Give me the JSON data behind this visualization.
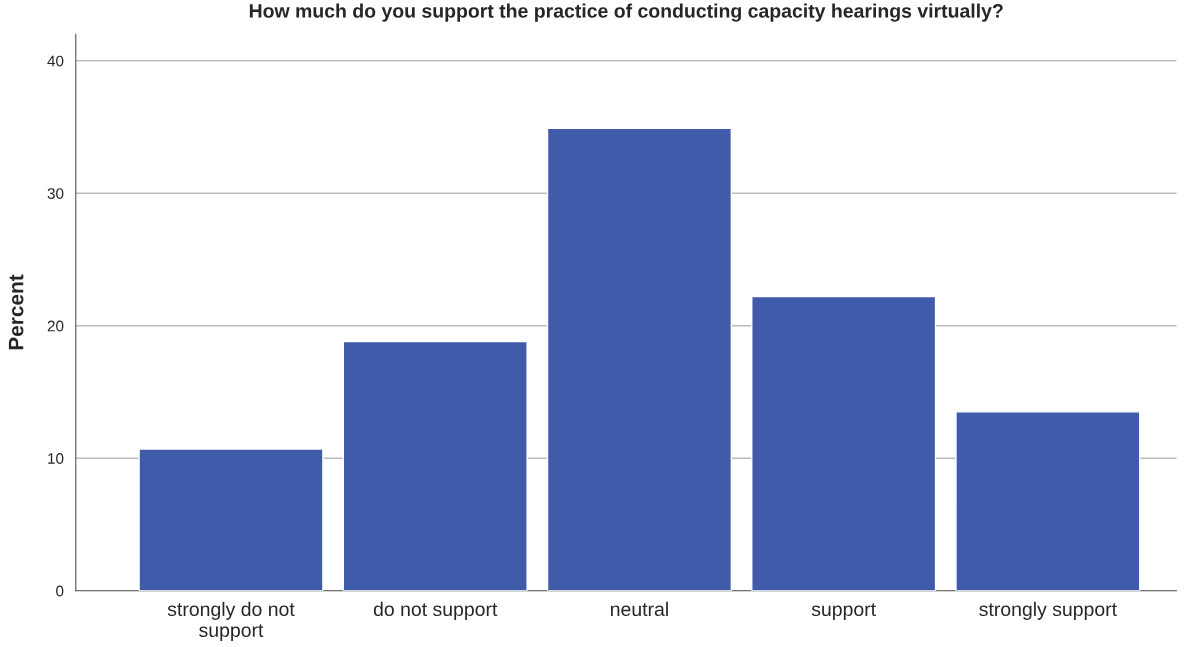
{
  "chart_data": {
    "type": "bar",
    "title": "How much do you support the practice of conducting capacity hearings virtually?",
    "ylabel": "Percent",
    "categories": [
      "strongly do not\nsupport",
      "do not support",
      "neutral",
      "support",
      "strongly support"
    ],
    "values": [
      10.7,
      18.8,
      34.9,
      22.2,
      13.5
    ],
    "color": "#3f5ba9",
    "ylim": [
      0,
      42
    ],
    "yticks": [
      0,
      10,
      20,
      30,
      40
    ],
    "grid": "y"
  }
}
